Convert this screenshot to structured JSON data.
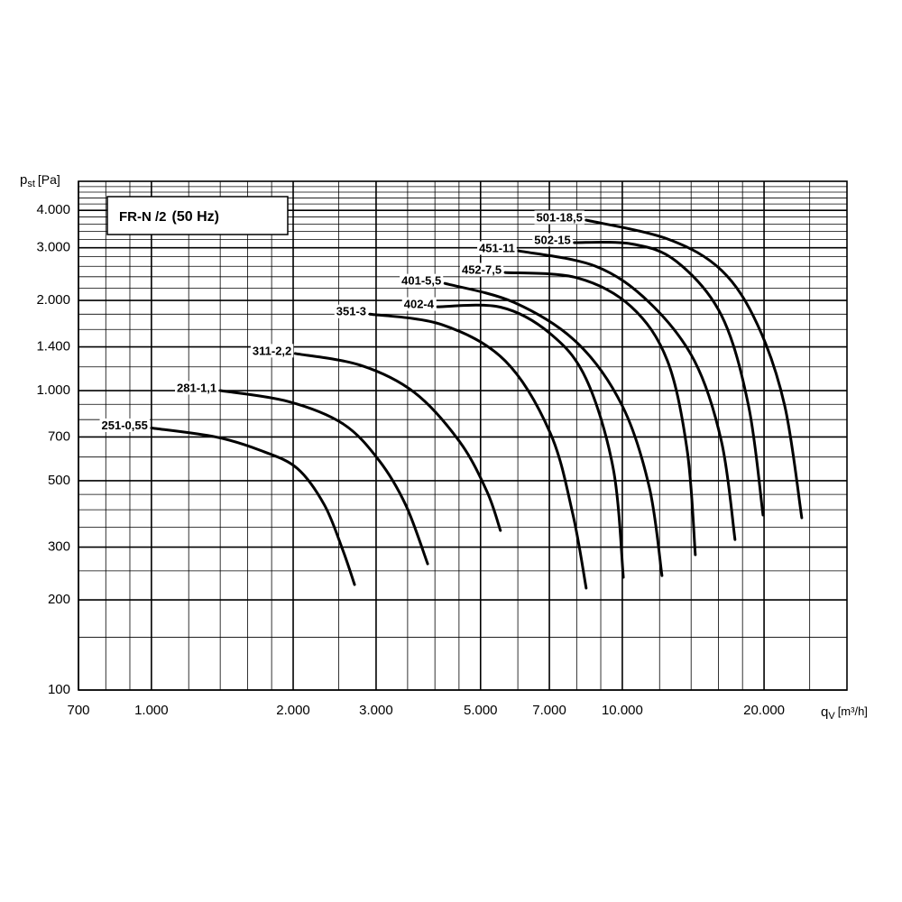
{
  "chart_data": {
    "type": "line",
    "title": "FR-N /2",
    "subtitle": "(50 Hz)",
    "y_label": {
      "symbol": "p",
      "subscript": "st",
      "unit": "[Pa]"
    },
    "x_label": {
      "symbol": "q",
      "subscript": "V",
      "unit": "[m³/h]"
    },
    "log_x": true,
    "log_y": true,
    "grid": true,
    "color": "#000000",
    "xlim": [
      700,
      30000
    ],
    "ylim": [
      100,
      5000
    ],
    "xticks": [
      700,
      {
        "value": 1000,
        "label": "1.000"
      },
      {
        "value": 2000,
        "label": "2.000"
      },
      {
        "value": 3000,
        "label": "3.000"
      },
      {
        "value": 5000,
        "label": "5.000"
      },
      {
        "value": 7000,
        "label": "7.000"
      },
      {
        "value": 10000,
        "label": "10.000"
      },
      {
        "value": 20000,
        "label": "20.000"
      }
    ],
    "yticks": [
      100,
      200,
      300,
      500,
      700,
      {
        "value": 1000,
        "label": "1.000"
      },
      {
        "value": 1400,
        "label": "1.400"
      },
      {
        "value": 2000,
        "label": "2.000"
      },
      {
        "value": 3000,
        "label": "3.000"
      },
      {
        "value": 4000,
        "label": "4.000"
      }
    ],
    "x_minor_grid": [
      800,
      900,
      1200,
      1400,
      1600,
      1800,
      2500,
      3500,
      4000,
      4500,
      6000,
      8000,
      9000,
      12000,
      14000,
      16000,
      18000,
      25000
    ],
    "y_minor_grid": [
      150,
      250,
      350,
      400,
      450,
      600,
      800,
      900,
      1200,
      1600,
      1800,
      2200,
      2400,
      2600,
      2800,
      3200,
      3400,
      3600,
      3800,
      4200,
      4400,
      4600,
      4800
    ],
    "series": [
      {
        "name": "251-0,55",
        "x": [
          1000,
          1370,
          1710,
          2040,
          2330,
          2550,
          2700
        ],
        "values": [
          750,
          700,
          630,
          550,
          415,
          293,
          225
        ]
      },
      {
        "name": "281-1,1",
        "x": [
          1400,
          1950,
          2550,
          3040,
          3470,
          3860
        ],
        "values": [
          1000,
          920,
          775,
          586,
          414,
          264
        ]
      },
      {
        "name": "311-2,2",
        "x": [
          2020,
          2780,
          3620,
          4520,
          5160,
          5510
        ],
        "values": [
          1330,
          1215,
          985,
          673,
          460,
          341
        ]
      },
      {
        "name": "351-3",
        "x": [
          2910,
          4140,
          5640,
          7030,
          7850,
          8380
        ],
        "values": [
          1800,
          1660,
          1257,
          722,
          387,
          219
        ]
      },
      {
        "name": "402-4",
        "x": [
          4050,
          5510,
          7030,
          8380,
          9570,
          10050
        ],
        "values": [
          1905,
          1900,
          1550,
          1094,
          547,
          238
        ]
      },
      {
        "name": "401-5,5",
        "x": [
          4200,
          5890,
          8020,
          10000,
          11410,
          12140
        ],
        "values": [
          2280,
          1970,
          1444,
          889,
          476,
          241
        ]
      },
      {
        "name": "452-7,5",
        "x": [
          5640,
          8020,
          10450,
          12470,
          13740,
          14290
        ],
        "values": [
          2480,
          2380,
          1905,
          1257,
          628,
          283
        ]
      },
      {
        "name": "451-11",
        "x": [
          6020,
          8760,
          11410,
          14230,
          16250,
          17350
        ],
        "values": [
          2930,
          2605,
          1970,
          1257,
          673,
          318
        ]
      },
      {
        "name": "502-15",
        "x": [
          7910,
          10450,
          13030,
          16250,
          18540,
          19900
        ],
        "values": [
          3120,
          3090,
          2700,
          1780,
          889,
          384
        ]
      },
      {
        "name": "501-18,5",
        "x": [
          8380,
          12470,
          16250,
          19370,
          22130,
          24050
        ],
        "values": [
          3710,
          3210,
          2520,
          1660,
          889,
          376
        ]
      }
    ]
  }
}
